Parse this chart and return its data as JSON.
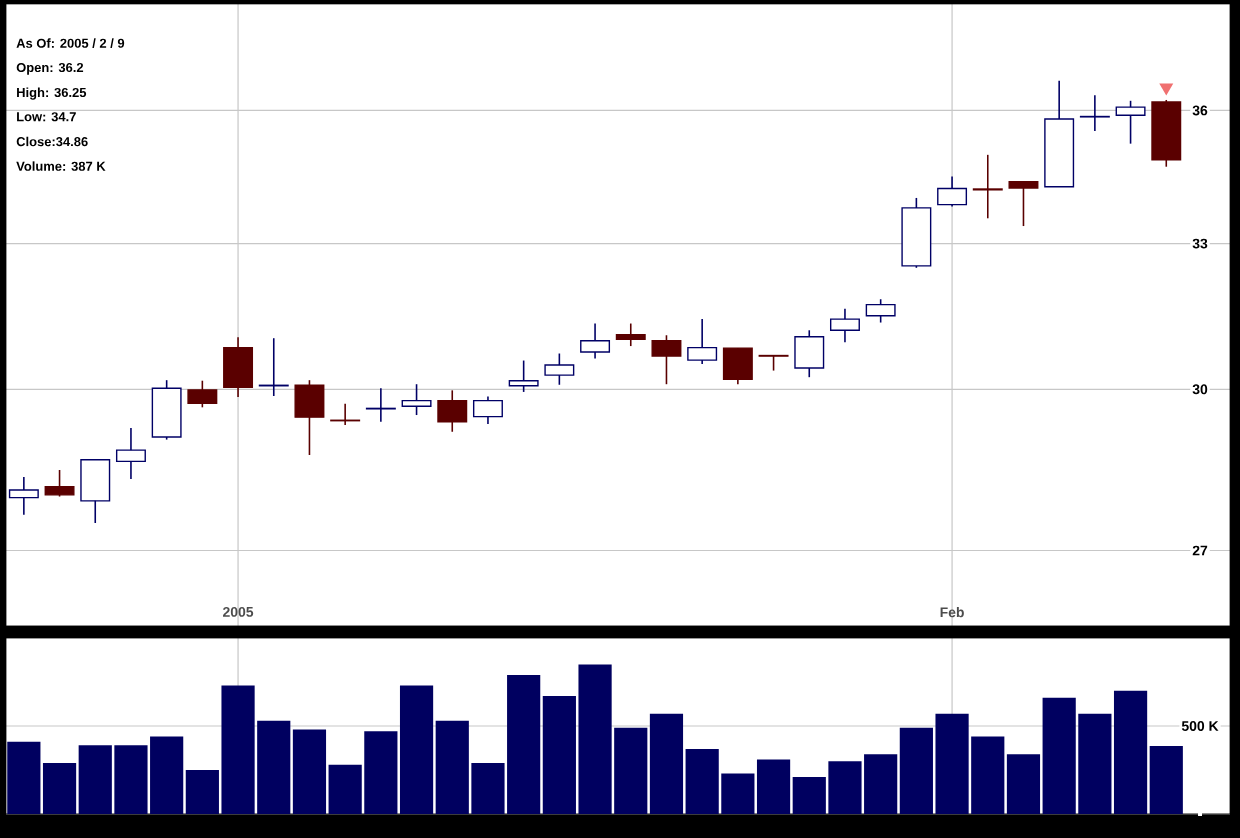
{
  "chart_data": [
    {
      "type": "candlestick",
      "categories": [
        null,
        null,
        null,
        null,
        null,
        null,
        "2005",
        null,
        null,
        null,
        null,
        null,
        null,
        null,
        null,
        null,
        null,
        null,
        null,
        null,
        null,
        null,
        null,
        null,
        null,
        null,
        "Feb",
        null,
        null,
        null,
        null,
        null,
        null
      ],
      "ohlc": [
        [
          27.95,
          28.33,
          27.64,
          28.09
        ],
        [
          28.15,
          28.46,
          27.97,
          28.0
        ],
        [
          27.89,
          28.65,
          27.49,
          28.65
        ],
        [
          28.62,
          29.25,
          28.29,
          28.83
        ],
        [
          29.08,
          30.18,
          29.03,
          30.02
        ],
        [
          29.99,
          30.17,
          29.65,
          29.73
        ],
        [
          30.83,
          31.04,
          29.85,
          30.04
        ],
        [
          30.07,
          31.02,
          29.87,
          30.08
        ],
        [
          30.08,
          30.18,
          28.74,
          29.46
        ],
        [
          29.4,
          29.72,
          29.31,
          29.39
        ],
        [
          29.62,
          30.02,
          29.37,
          29.63
        ],
        [
          29.67,
          30.1,
          29.5,
          29.78
        ],
        [
          29.78,
          29.98,
          29.18,
          29.37
        ],
        [
          29.47,
          29.86,
          29.33,
          29.78
        ],
        [
          30.07,
          30.57,
          29.95,
          30.17
        ],
        [
          30.28,
          30.71,
          30.09,
          30.48
        ],
        [
          30.74,
          31.32,
          30.61,
          30.97
        ],
        [
          31.09,
          31.32,
          30.86,
          31.0
        ],
        [
          30.97,
          31.08,
          30.1,
          30.66
        ],
        [
          30.58,
          31.41,
          30.5,
          30.83
        ],
        [
          30.82,
          30.82,
          30.1,
          30.2
        ],
        [
          30.67,
          30.67,
          30.37,
          30.66
        ],
        [
          30.42,
          31.18,
          30.24,
          31.05
        ],
        [
          31.18,
          31.62,
          30.94,
          31.41
        ],
        [
          31.48,
          31.82,
          31.34,
          31.71
        ],
        [
          32.52,
          34.0,
          32.48,
          33.78
        ],
        [
          33.85,
          34.48,
          33.81,
          34.21
        ],
        [
          34.2,
          34.97,
          33.55,
          34.18
        ],
        [
          34.36,
          34.36,
          33.38,
          34.22
        ],
        [
          34.25,
          36.71,
          34.25,
          35.8
        ],
        [
          35.85,
          36.36,
          35.52,
          35.86
        ],
        [
          35.89,
          36.23,
          35.23,
          36.08
        ],
        [
          36.2,
          36.25,
          34.7,
          34.86
        ]
      ],
      "ylim": [
        25.7,
        38.6
      ],
      "yticks": [
        27,
        30,
        33,
        36
      ],
      "log": true,
      "grid": true,
      "annotations": [
        "As Of: 2005 / 2 / 9",
        "Open: 36.2",
        "High: 36.25",
        "Low: 34.7",
        "Close:34.86",
        "Volume: 387 K"
      ]
    },
    {
      "type": "bar",
      "categories": [
        null,
        null,
        null,
        null,
        null,
        null,
        null,
        null,
        null,
        null,
        null,
        null,
        null,
        null,
        null,
        null,
        null,
        null,
        null,
        null,
        null,
        null,
        null,
        null,
        null,
        null,
        null,
        null,
        null,
        null,
        null,
        null,
        null
      ],
      "values": [
        410,
        290,
        390,
        390,
        440,
        250,
        730,
        530,
        480,
        280,
        470,
        730,
        530,
        290,
        790,
        670,
        850,
        490,
        570,
        370,
        230,
        310,
        210,
        300,
        340,
        490,
        570,
        440,
        340,
        660,
        570,
        700,
        387
      ],
      "color": "#000060",
      "ylim": [
        0,
        1000
      ],
      "yticks": [
        {
          "value": 0,
          "label": null
        },
        {
          "value": 500,
          "label": "500 K"
        }
      ],
      "grid": true,
      "tick_labels": "y"
    }
  ]
}
